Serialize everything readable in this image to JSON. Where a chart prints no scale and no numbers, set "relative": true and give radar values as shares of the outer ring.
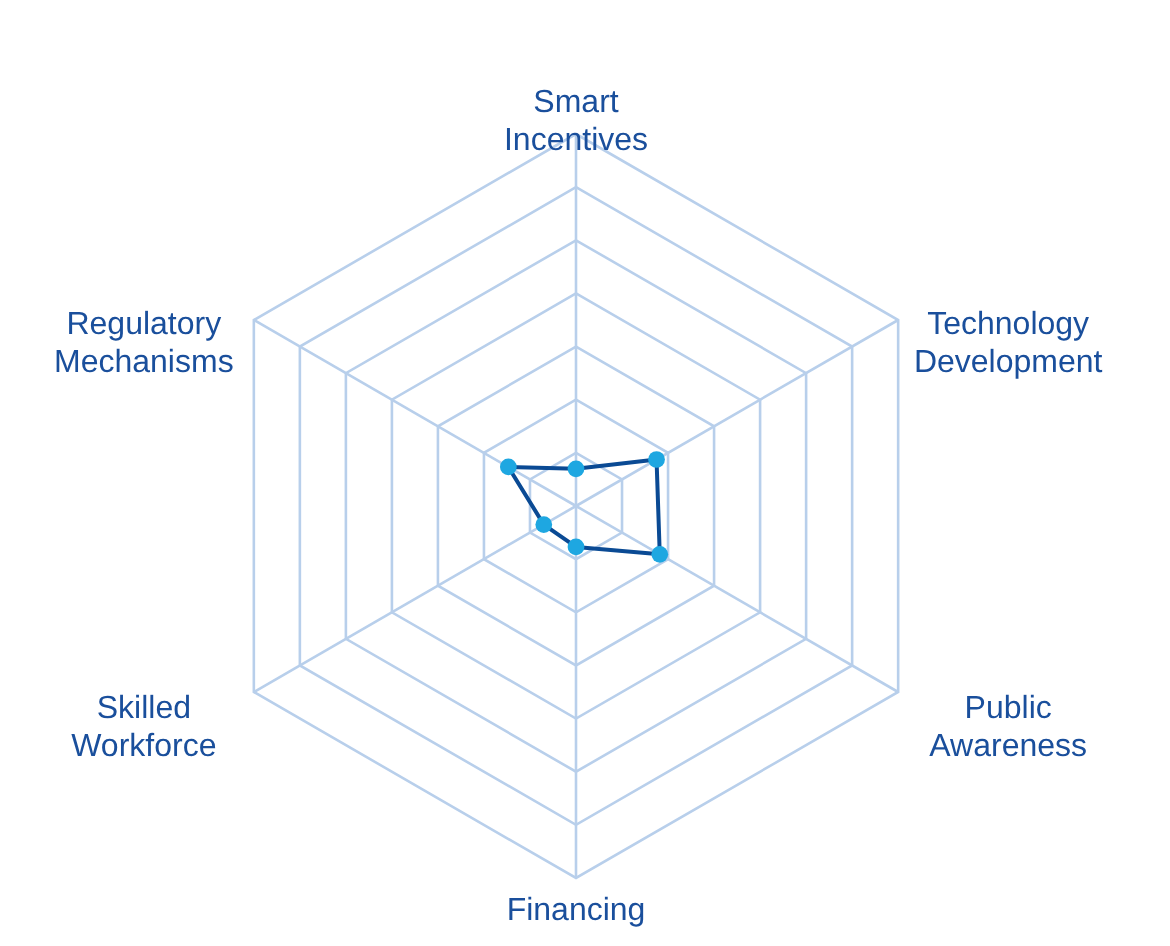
{
  "chart_data": {
    "type": "radar",
    "relative": true,
    "categories": [
      "Smart Incentives",
      "Technology Development",
      "Public Awareness",
      "Financing",
      "Skilled Workforce",
      "Regulatory Mechanisms"
    ],
    "series": [
      {
        "color": "#0a4a94",
        "values": [
          0.1,
          0.25,
          0.26,
          0.11,
          0.1,
          0.21
        ]
      }
    ],
    "marker": "circle",
    "line_style": "solid",
    "grid": true
  }
}
